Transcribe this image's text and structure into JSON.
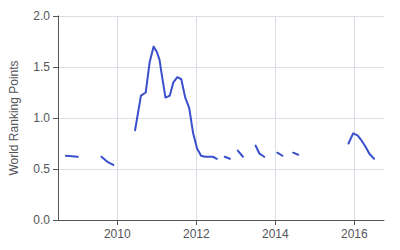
{
  "chart_data": {
    "type": "line",
    "y_label": "World Ranking Points",
    "color": "#3a4fcc",
    "series": [
      {
        "x": [
          2008.7,
          2009.0
        ],
        "values": [
          0.63,
          0.62
        ]
      },
      {
        "x": [
          2009.6,
          2009.75,
          2009.9
        ],
        "values": [
          0.62,
          0.57,
          0.54
        ]
      },
      {
        "x": [
          2010.45,
          2010.6,
          2010.72,
          2010.82,
          2010.92,
          2011.0,
          2011.07,
          2011.12,
          2011.22,
          2011.33,
          2011.42,
          2011.52,
          2011.62,
          2011.72,
          2011.82,
          2011.92,
          2012.02,
          2012.12,
          2012.22,
          2012.32,
          2012.42,
          2012.52
        ],
        "values": [
          0.88,
          1.22,
          1.25,
          1.55,
          1.7,
          1.65,
          1.57,
          1.44,
          1.2,
          1.22,
          1.35,
          1.4,
          1.38,
          1.2,
          1.1,
          0.85,
          0.7,
          0.63,
          0.62,
          0.62,
          0.62,
          0.6
        ]
      },
      {
        "x": [
          2012.72,
          2012.85
        ],
        "values": [
          0.62,
          0.6
        ]
      },
      {
        "x": [
          2013.05,
          2013.18
        ],
        "values": [
          0.68,
          0.62
        ]
      },
      {
        "x": [
          2013.5,
          2013.6,
          2013.72
        ],
        "values": [
          0.73,
          0.65,
          0.62
        ]
      },
      {
        "x": [
          2014.05,
          2014.18
        ],
        "values": [
          0.66,
          0.63
        ]
      },
      {
        "x": [
          2014.45,
          2014.58
        ],
        "values": [
          0.66,
          0.64
        ]
      },
      {
        "x": [
          2015.85,
          2015.97,
          2016.08,
          2016.18,
          2016.28,
          2016.38,
          2016.5
        ],
        "values": [
          0.75,
          0.85,
          0.83,
          0.78,
          0.72,
          0.65,
          0.6
        ]
      }
    ],
    "xlim": [
      2008.5,
      2016.75
    ],
    "xticks": [
      2010,
      2012,
      2014,
      2016
    ],
    "ylim": [
      0,
      2
    ],
    "yticks": [
      {
        "value": 0,
        "label": "0.0"
      },
      0.5,
      {
        "value": 1.0,
        "label": "1.0"
      },
      1.5,
      {
        "value": 2.0,
        "label": "2.0"
      }
    ],
    "grid": true
  }
}
